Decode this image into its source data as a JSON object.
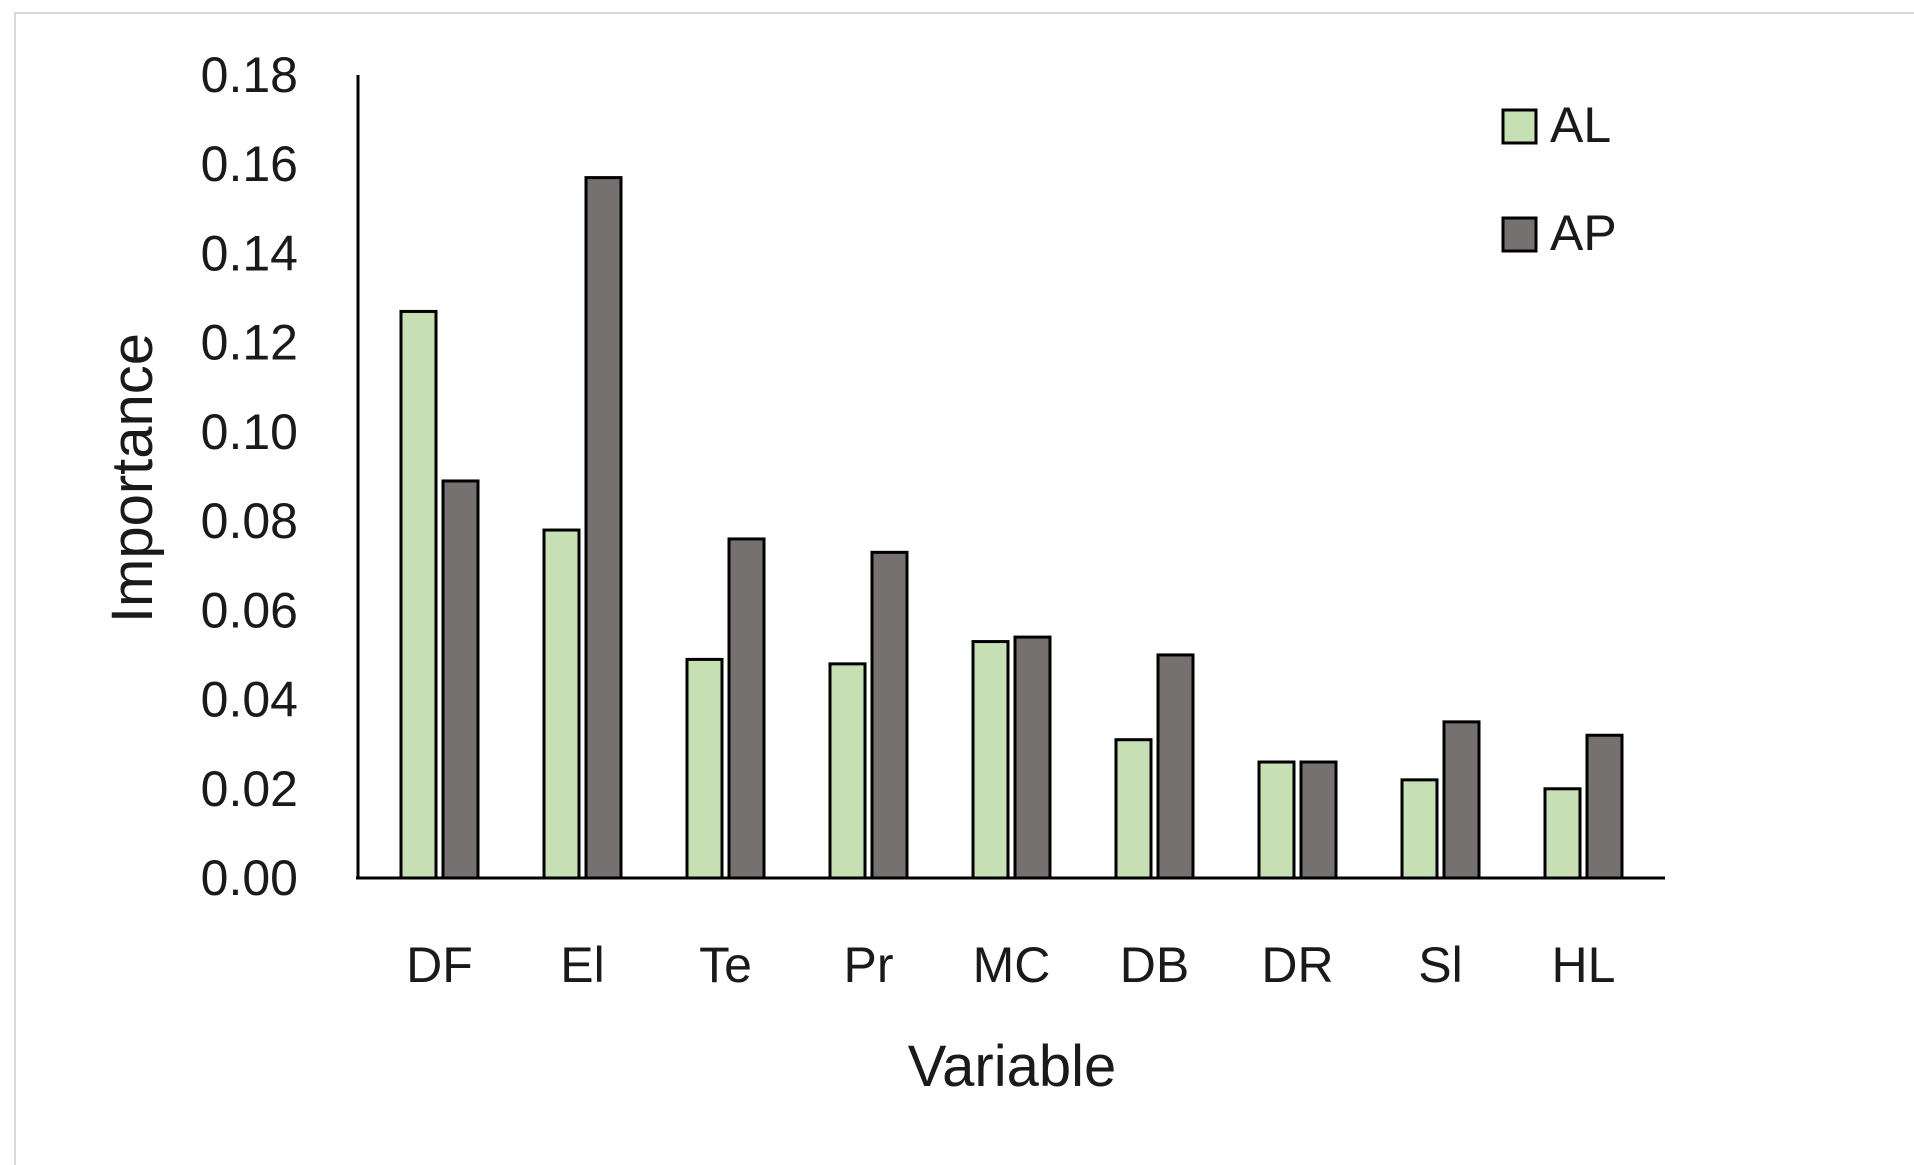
{
  "chart_data": {
    "type": "bar",
    "title": "",
    "xlabel": "Variable",
    "ylabel": "Importance",
    "categories": [
      "DF",
      "El",
      "Te",
      "Pr",
      "MC",
      "DB",
      "DR",
      "Sl",
      "HL"
    ],
    "series": [
      {
        "name": "AL",
        "color": "#c6e0b4",
        "values": [
          0.127,
          0.078,
          0.049,
          0.048,
          0.053,
          0.031,
          0.026,
          0.022,
          0.02
        ]
      },
      {
        "name": "AP",
        "color": "#767171",
        "values": [
          0.089,
          0.157,
          0.076,
          0.073,
          0.054,
          0.05,
          0.026,
          0.035,
          0.032
        ]
      }
    ],
    "ylim": [
      0,
      0.18
    ],
    "yticks": [
      "0.00",
      "0.02",
      "0.04",
      "0.06",
      "0.08",
      "0.10",
      "0.12",
      "0.14",
      "0.16",
      "0.18"
    ],
    "grid": false,
    "legend_position": "top-right"
  }
}
